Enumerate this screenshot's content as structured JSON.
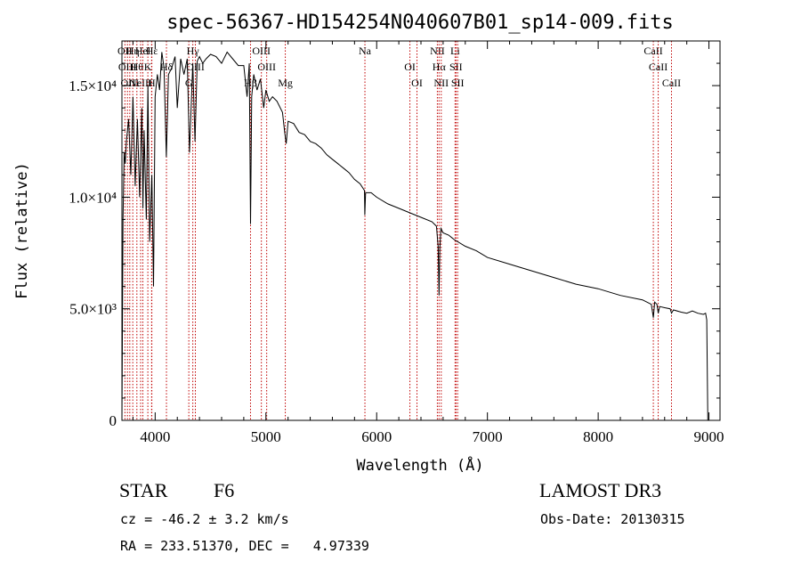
{
  "chart_data": {
    "type": "line",
    "title": "spec-56367-HD154254N040607B01_sp14-009.fits",
    "xlabel": "Wavelength (Å)",
    "ylabel": "Flux (relative)",
    "xlim": [
      3700,
      9100
    ],
    "ylim": [
      0,
      17000
    ],
    "x_ticks": [
      {
        "value": 4000,
        "label": "4000"
      },
      {
        "value": 5000,
        "label": "5000"
      },
      {
        "value": 6000,
        "label": "6000"
      },
      {
        "value": 7000,
        "label": "7000"
      },
      {
        "value": 8000,
        "label": "8000"
      },
      {
        "value": 9000,
        "label": "9000"
      }
    ],
    "y_ticks": [
      {
        "value": 0,
        "label": "0"
      },
      {
        "value": 5000,
        "label": "5.0×10³"
      },
      {
        "value": 10000,
        "label": "1.0×10⁴"
      },
      {
        "value": 15000,
        "label": "1.5×10⁴"
      }
    ],
    "series": [
      {
        "name": "spectrum",
        "x": [
          3700,
          3710,
          3720,
          3730,
          3740,
          3760,
          3780,
          3800,
          3820,
          3840,
          3860,
          3880,
          3890,
          3900,
          3920,
          3935,
          3950,
          3970,
          3985,
          4000,
          4020,
          4040,
          4060,
          4080,
          4101,
          4120,
          4150,
          4180,
          4200,
          4230,
          4260,
          4290,
          4310,
          4340,
          4360,
          4380,
          4400,
          4430,
          4460,
          4500,
          4550,
          4600,
          4650,
          4700,
          4750,
          4800,
          4830,
          4850,
          4861,
          4872,
          4890,
          4920,
          4950,
          4980,
          5000,
          5030,
          5060,
          5100,
          5150,
          5170,
          5183,
          5200,
          5250,
          5300,
          5350,
          5400,
          5450,
          5500,
          5550,
          5600,
          5650,
          5700,
          5750,
          5800,
          5850,
          5890,
          5893,
          5900,
          5950,
          6000,
          6100,
          6200,
          6300,
          6400,
          6500,
          6540,
          6555,
          6563,
          6570,
          6580,
          6600,
          6650,
          6700,
          6800,
          6900,
          7000,
          7200,
          7400,
          7600,
          7800,
          8000,
          8200,
          8400,
          8480,
          8498,
          8510,
          8530,
          8542,
          8555,
          8600,
          8650,
          8662,
          8680,
          8750,
          8800,
          8850,
          8900,
          8950,
          8970,
          8980,
          8990
        ],
        "values": [
          0,
          9000,
          12000,
          11500,
          12500,
          13500,
          11000,
          14500,
          10500,
          13500,
          10000,
          14000,
          9500,
          13000,
          9000,
          15000,
          8000,
          11000,
          6000,
          14500,
          15500,
          14800,
          16500,
          15800,
          11800,
          15500,
          15800,
          16300,
          14000,
          16200,
          15500,
          16200,
          12000,
          16000,
          12500,
          16100,
          16300,
          16000,
          16200,
          16400,
          16300,
          16000,
          16500,
          16200,
          15900,
          15900,
          14500,
          16000,
          8800,
          14500,
          15500,
          14800,
          15300,
          14000,
          14800,
          14300,
          14500,
          14300,
          13800,
          12900,
          12400,
          13400,
          13300,
          12900,
          12800,
          12500,
          12400,
          12200,
          11900,
          11700,
          11500,
          11300,
          11100,
          10800,
          10600,
          10300,
          9200,
          10200,
          10200,
          10000,
          9700,
          9500,
          9300,
          9100,
          8900,
          8700,
          7800,
          5600,
          7700,
          8600,
          8400,
          8300,
          8100,
          7800,
          7600,
          7300,
          7000,
          6700,
          6400,
          6100,
          5900,
          5600,
          5400,
          5200,
          4600,
          5300,
          5200,
          4800,
          5100,
          5050,
          5000,
          4800,
          4950,
          4850,
          4800,
          4900,
          4800,
          4750,
          4800,
          4500,
          0
        ]
      }
    ],
    "line_markers": [
      {
        "x": 3727,
        "label": "OII"
      },
      {
        "x": 3750,
        "label": "OIII"
      },
      {
        "x": 3771,
        "label": "OIII"
      },
      {
        "x": 3798,
        "label": "Hη"
      },
      {
        "x": 3835,
        "label": "Hθ"
      },
      {
        "x": 3869,
        "label": "NeIII"
      },
      {
        "x": 3889,
        "label": "Hel"
      },
      {
        "x": 3934,
        "label": "K"
      },
      {
        "x": 3968,
        "label": "H"
      },
      {
        "x": 3970,
        "label": "Hε"
      },
      {
        "x": 4102,
        "label": "Hδ"
      },
      {
        "x": 4304,
        "label": "G"
      },
      {
        "x": 4340,
        "label": "Hγ"
      },
      {
        "x": 4363,
        "label": "OIII"
      },
      {
        "x": 4861,
        "label": "Hβ"
      },
      {
        "x": 4959,
        "label": "OIII"
      },
      {
        "x": 5007,
        "label": "OIII"
      },
      {
        "x": 5175,
        "label": "Mg"
      },
      {
        "x": 5894,
        "label": "Na"
      },
      {
        "x": 6300,
        "label": "OI"
      },
      {
        "x": 6364,
        "label": "OI"
      },
      {
        "x": 6548,
        "label": "NII"
      },
      {
        "x": 6563,
        "label": "Hα"
      },
      {
        "x": 6583,
        "label": "NII"
      },
      {
        "x": 6708,
        "label": "Li"
      },
      {
        "x": 6716,
        "label": "SII"
      },
      {
        "x": 6731,
        "label": "SII"
      },
      {
        "x": 8498,
        "label": "CaII"
      },
      {
        "x": 8542,
        "label": "CaII"
      },
      {
        "x": 8662,
        "label": "CaII"
      }
    ]
  },
  "info": {
    "class_label": "STAR",
    "subclass": "F6",
    "survey": "LAMOST DR3",
    "cz_line": "cz = -46.2 ± 3.2 km/s",
    "obs_date": "Obs-Date: 20130315",
    "coords": "RA = 233.51370, DEC =   4.97339"
  }
}
